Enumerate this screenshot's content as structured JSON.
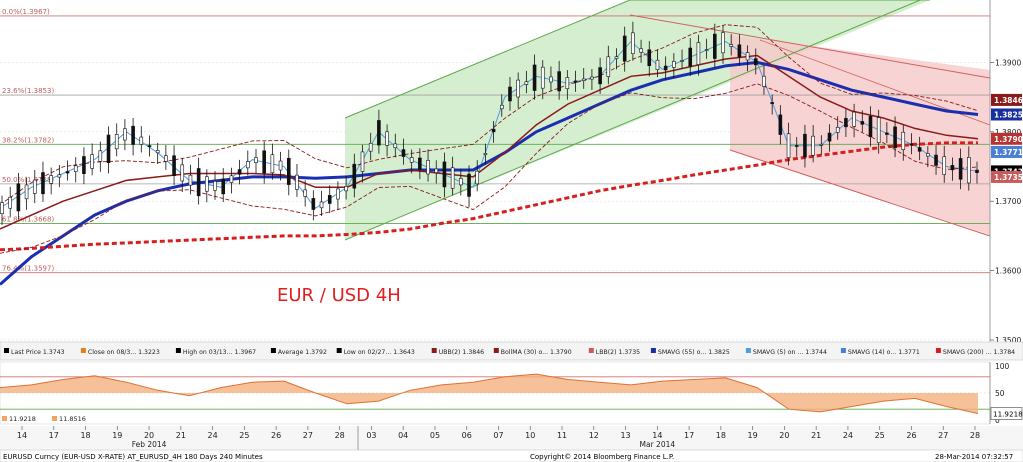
{
  "chart_data": {
    "type": "line",
    "title": "EUR / USD 4H",
    "instrument_bar": "EURUSD Curncy (EUR-USD X-RATE) AT_EURUSD_4H 180 Days 240 Minutes",
    "copyright": "Copyright© 2014 Bloomberg Finance L.P.",
    "timestamp": "28-Mar-2014 07:32:57",
    "x_ticks": [
      "14",
      "17",
      "18",
      "19",
      "20",
      "21",
      "24",
      "25",
      "26",
      "27",
      "28",
      "03",
      "04",
      "05",
      "06",
      "07",
      "10",
      "11",
      "12",
      "13",
      "14",
      "17",
      "18",
      "19",
      "20",
      "21",
      "24",
      "25",
      "26",
      "27",
      "28"
    ],
    "month_labels": [
      {
        "label": "Feb 2014",
        "tick": "20"
      },
      {
        "label": "Mar 2014",
        "tick": "14"
      }
    ],
    "ylim": [
      1.35,
      1.399
    ],
    "y_ticks": [
      1.35,
      1.36,
      1.37,
      1.38,
      1.39
    ],
    "y_tick_labels": [
      "1.3500",
      "1.3600",
      "1.3700",
      "1.3800",
      "1.3900"
    ],
    "fib_levels": [
      {
        "label": "0.0%(1.3967)",
        "value": 1.3967
      },
      {
        "label": "23.6%(1.3853)",
        "value": 1.3853
      },
      {
        "label": "38.2%(1.3782)",
        "value": 1.3782
      },
      {
        "label": "50.0%(1.3725)",
        "value": 1.3725
      },
      {
        "label": "61.8%(1.3668)",
        "value": 1.3668
      },
      {
        "label": "76.4%(1.3597)",
        "value": 1.3597
      }
    ],
    "price_badges": [
      {
        "label": "1.3846",
        "value": 1.3846,
        "color": "#8b1a1a"
      },
      {
        "label": "1.3825",
        "value": 1.3825,
        "color": "#1a2f9e"
      },
      {
        "label": "1.3790",
        "value": 1.379,
        "color": "#b83232"
      },
      {
        "label": "1.3771",
        "value": 1.3771,
        "color": "#4a7fd6"
      },
      {
        "label": "1.3743",
        "value": 1.3743,
        "color": "#000000"
      },
      {
        "label": "1.3735",
        "value": 1.3735,
        "color": "#c85a5a"
      }
    ],
    "legend": [
      {
        "text": "Last Price 1.3743",
        "color": "#000000"
      },
      {
        "text": "Close on 08/3... 1.3223",
        "color": "#e08020"
      },
      {
        "text": "High on 03/13... 1.3967",
        "color": "#000000"
      },
      {
        "text": "Average 1.3792",
        "color": "#000000"
      },
      {
        "text": "Low on 02/27... 1.3643",
        "color": "#000000"
      },
      {
        "text": "UBB(2) 1.3846",
        "color": "#8b1a1a"
      },
      {
        "text": "BollMA (30) o... 1.3790",
        "color": "#8b1a1a"
      },
      {
        "text": "LBB(2) 1.3735",
        "color": "#c85a5a"
      },
      {
        "text": "SMAVG (55) o... 1.3825",
        "color": "#1a2f9e"
      },
      {
        "text": "SMAVG (5) on ... 1.3744",
        "color": "#4a9ee0"
      },
      {
        "text": "SMAVG (14) o... 1.3771",
        "color": "#4a7fd6"
      },
      {
        "text": "SMAVG (200) ... 1.3784",
        "color": "#d62020"
      }
    ],
    "osc": {
      "ylim": [
        0,
        100
      ],
      "y_ticks": [
        0,
        50,
        100
      ],
      "y_tick_labels": [
        "0",
        "50",
        "100"
      ],
      "last_value_label": "11.9218",
      "left_values": [
        {
          "text": "11.9218",
          "color": "#f4a460"
        },
        {
          "text": "11.8516",
          "color": "#f4a460"
        }
      ],
      "levels": [
        80,
        20
      ]
    },
    "series": [
      {
        "name": "Price",
        "values": [
          1.369,
          1.372,
          1.374,
          1.376,
          1.38,
          1.377,
          1.373,
          1.372,
          1.376,
          1.375,
          1.369,
          1.372,
          1.38,
          1.376,
          1.374,
          1.372,
          1.385,
          1.388,
          1.387,
          1.388,
          1.393,
          1.389,
          1.391,
          1.393,
          1.39,
          1.378,
          1.378,
          1.382,
          1.38,
          1.378,
          1.375,
          1.3743
        ]
      },
      {
        "name": "SMAVG (55)",
        "values": [
          1.358,
          1.362,
          1.365,
          1.368,
          1.37,
          1.3715,
          1.3725,
          1.373,
          1.3735,
          1.3735,
          1.3733,
          1.3735,
          1.374,
          1.3745,
          1.3745,
          1.3745,
          1.377,
          1.38,
          1.382,
          1.384,
          1.386,
          1.3875,
          1.3885,
          1.3895,
          1.39,
          1.389,
          1.3875,
          1.386,
          1.385,
          1.384,
          1.383,
          1.3825
        ]
      },
      {
        "name": "SMAVG (200)",
        "values": [
          1.363,
          1.3632,
          1.3635,
          1.3638,
          1.364,
          1.3642,
          1.3644,
          1.3646,
          1.3648,
          1.365,
          1.365,
          1.3652,
          1.3655,
          1.366,
          1.3668,
          1.3675,
          1.3685,
          1.3695,
          1.3705,
          1.3715,
          1.3723,
          1.373,
          1.3738,
          1.3745,
          1.3752,
          1.376,
          1.3766,
          1.3772,
          1.3778,
          1.3782,
          1.3784,
          1.3784
        ]
      },
      {
        "name": "BollMA (30)",
        "values": [
          1.366,
          1.368,
          1.37,
          1.3715,
          1.373,
          1.3735,
          1.374,
          1.374,
          1.374,
          1.3738,
          1.372,
          1.372,
          1.374,
          1.3745,
          1.374,
          1.3735,
          1.377,
          1.381,
          1.384,
          1.386,
          1.388,
          1.3885,
          1.3895,
          1.3905,
          1.391,
          1.388,
          1.385,
          1.383,
          1.382,
          1.3805,
          1.3795,
          1.379
        ]
      }
    ],
    "osc_series": {
      "values": [
        60,
        65,
        75,
        82,
        70,
        55,
        45,
        60,
        70,
        72,
        50,
        30,
        35,
        55,
        65,
        70,
        80,
        85,
        75,
        70,
        65,
        72,
        75,
        78,
        60,
        20,
        15,
        25,
        35,
        40,
        25,
        12
      ]
    }
  }
}
